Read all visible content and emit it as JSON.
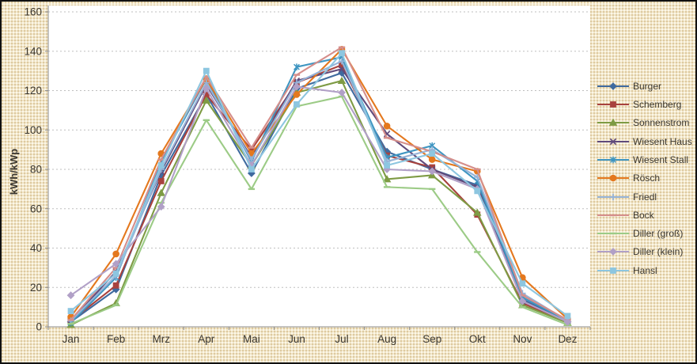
{
  "window": {
    "background_color": "#F2E7CC",
    "border_color": "#111111"
  },
  "chart_data": {
    "type": "line",
    "ylabel": "kWh/kWp",
    "ylim": [
      0,
      160
    ],
    "ytick_interval": 20,
    "yticks": [
      0,
      20,
      40,
      60,
      80,
      100,
      120,
      140,
      160
    ],
    "grid": "horizontal dashed",
    "legend_position": "right",
    "plot_background": "#FFFFFF",
    "gridline_color": "#BFBFBF",
    "axis_color": "#8C8C8C",
    "text_color": "#3B372F",
    "categories": [
      "Jan",
      "Feb",
      "Mrz",
      "Apr",
      "Mai",
      "Jun",
      "Jul",
      "Aug",
      "Sep",
      "Okt",
      "Nov",
      "Dez"
    ],
    "series": [
      {
        "name": "Burger",
        "color": "#3F6A9F",
        "marker": "diamond",
        "values": [
          2.5,
          19,
          77,
          118,
          78,
          121,
          129,
          89,
          80,
          72,
          14,
          2.5
        ]
      },
      {
        "name": "Schemberg",
        "color": "#A8423E",
        "marker": "square",
        "values": [
          3,
          21,
          74,
          118,
          90,
          124,
          133,
          87,
          81,
          57,
          12,
          2.5
        ]
      },
      {
        "name": "Sonnenstrom",
        "color": "#7E9B44",
        "marker": "triangle",
        "values": [
          1,
          12,
          68,
          115,
          82,
          119,
          125,
          75,
          77,
          58,
          11,
          2
        ]
      },
      {
        "name": "Wiesent Haus",
        "color": "#604A7B",
        "marker": "x",
        "values": [
          3,
          28,
          79,
          123,
          86,
          125,
          131,
          98,
          80,
          71,
          13,
          2.5
        ]
      },
      {
        "name": "Wiesent Stall",
        "color": "#3E95C1",
        "marker": "asterisk",
        "values": [
          2,
          25,
          84,
          126,
          84,
          132,
          137,
          86,
          92,
          74,
          15,
          3
        ]
      },
      {
        "name": "Rösch",
        "color": "#E4781E",
        "marker": "circle",
        "values": [
          5,
          37,
          88,
          126,
          88,
          118,
          141,
          102,
          85,
          79,
          25,
          4
        ]
      },
      {
        "name": "Friedl",
        "color": "#95B3D7",
        "marker": "plus",
        "values": [
          3,
          26,
          80,
          124,
          85,
          124,
          135,
          84,
          90,
          76,
          17,
          3
        ]
      },
      {
        "name": "Bock",
        "color": "#D58E8B",
        "marker": "dash",
        "values": [
          3.5,
          30,
          85,
          127,
          91,
          128,
          142,
          96,
          89,
          80,
          16,
          3.5
        ]
      },
      {
        "name": "Diller (groß)",
        "color": "#9CCB86",
        "marker": "dash",
        "values": [
          1.5,
          11,
          63,
          105,
          70,
          112,
          117,
          71,
          70,
          38,
          10,
          1
        ]
      },
      {
        "name": "Diller (klein)",
        "color": "#B1A0C7",
        "marker": "diamond",
        "values": [
          16,
          32,
          61,
          121,
          82,
          122,
          119,
          80,
          79,
          70,
          13,
          2.5
        ]
      },
      {
        "name": "Hansl",
        "color": "#8DC6E0",
        "marker": "square",
        "values": [
          8,
          27,
          82,
          130,
          80,
          113,
          139,
          82,
          88,
          69,
          22,
          5.5
        ]
      }
    ]
  }
}
